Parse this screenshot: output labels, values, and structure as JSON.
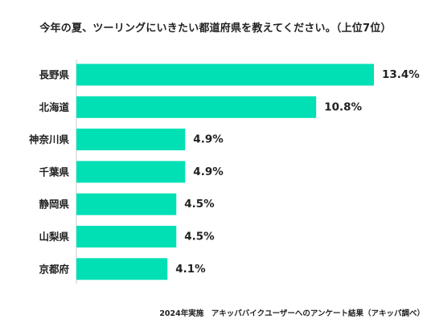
{
  "chart_data": {
    "type": "bar",
    "orientation": "horizontal",
    "title": "今年の夏、ツーリングにいきたい都道府県を教えてください。（上位7位）",
    "categories": [
      "長野県",
      "北海道",
      "神奈川県",
      "千葉県",
      "静岡県",
      "山梨県",
      "京都府"
    ],
    "values": [
      13.4,
      10.8,
      4.9,
      4.9,
      4.5,
      4.5,
      4.1
    ],
    "value_labels": [
      "13.4%",
      "10.8%",
      "4.9%",
      "4.9%",
      "4.5%",
      "4.5%",
      "4.1%"
    ],
    "unit": "%",
    "xlim": [
      0,
      13.4
    ],
    "grid": false,
    "bar_color": "#00e0b4",
    "footnote": "2024年実施　アキッパバイクユーザーへのアンケート結果（アキッパ調べ）"
  }
}
